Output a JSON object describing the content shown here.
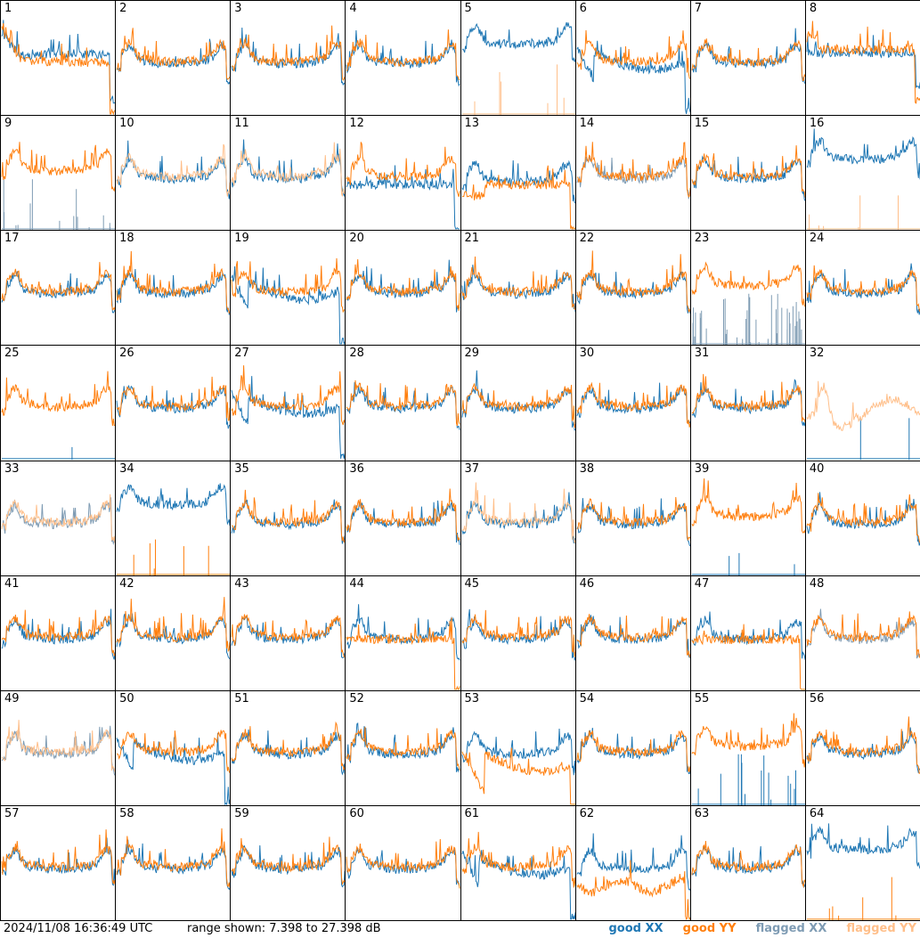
{
  "colors": {
    "good_xx": "#1f77b4",
    "good_yy": "#ff7f0e",
    "flagged_xx": "#7f9cb4",
    "flagged_yy": "#ffbf8a"
  },
  "footer": {
    "timestamp": "2024/11/08 16:36:49 UTC",
    "range_text": "range shown: 7.398 to 27.398 dB"
  },
  "legend": {
    "good_xx": "good XX",
    "good_yy": "good YY",
    "flagged_xx": "flagged XX",
    "flagged_yy": "flagged YY"
  },
  "chart_data": {
    "type": "line",
    "grid": "8x8",
    "ylim_db": [
      7.398,
      27.398
    ],
    "panels": [
      {
        "label": "1",
        "xx": "good",
        "yy": "good",
        "shape": "decay_flat"
      },
      {
        "label": "2",
        "xx": "good",
        "yy": "good",
        "shape": "normal"
      },
      {
        "label": "3",
        "xx": "good",
        "yy": "good",
        "shape": "normal"
      },
      {
        "label": "4",
        "xx": "good",
        "yy": "good",
        "shape": "normal"
      },
      {
        "label": "5",
        "xx": "good",
        "yy": "flagged",
        "shape": "xx_high_yy_spikes"
      },
      {
        "label": "6",
        "xx": "good",
        "yy": "good",
        "shape": "xx_low_curve"
      },
      {
        "label": "7",
        "xx": "good",
        "yy": "good",
        "shape": "normal"
      },
      {
        "label": "8",
        "xx": "good",
        "yy": "good",
        "shape": "flat_drop"
      },
      {
        "label": "9",
        "xx": "flagged",
        "yy": "good",
        "shape": "yy_high_xx_spikes"
      },
      {
        "label": "10",
        "xx": "good",
        "yy": "flagged",
        "shape": "normal"
      },
      {
        "label": "11",
        "xx": "good",
        "yy": "flagged",
        "shape": "normal"
      },
      {
        "label": "12",
        "xx": "good",
        "yy": "good",
        "shape": "xx_flat_lower"
      },
      {
        "label": "13",
        "xx": "good",
        "yy": "good",
        "shape": "noisy_decay"
      },
      {
        "label": "14",
        "xx": "flagged",
        "yy": "good",
        "shape": "normal"
      },
      {
        "label": "15",
        "xx": "good",
        "yy": "good",
        "shape": "normal"
      },
      {
        "label": "16",
        "xx": "good",
        "yy": "flagged",
        "shape": "xx_high_yy_spikes"
      },
      {
        "label": "17",
        "xx": "good",
        "yy": "good",
        "shape": "normal"
      },
      {
        "label": "18",
        "xx": "good",
        "yy": "good",
        "shape": "normal"
      },
      {
        "label": "19",
        "xx": "good",
        "yy": "good",
        "shape": "xx_low_curve"
      },
      {
        "label": "20",
        "xx": "good",
        "yy": "good",
        "shape": "normal"
      },
      {
        "label": "21",
        "xx": "good",
        "yy": "good",
        "shape": "normal"
      },
      {
        "label": "22",
        "xx": "good",
        "yy": "good",
        "shape": "normal"
      },
      {
        "label": "23",
        "xx": "flagged",
        "yy": "good",
        "shape": "yy_high_xx_noise"
      },
      {
        "label": "24",
        "xx": "good",
        "yy": "good",
        "shape": "normal"
      },
      {
        "label": "25",
        "xx": "good",
        "yy": "good",
        "shape": "yy_only"
      },
      {
        "label": "26",
        "xx": "good",
        "yy": "good",
        "shape": "normal"
      },
      {
        "label": "27",
        "xx": "good",
        "yy": "good",
        "shape": "xx_low_curve"
      },
      {
        "label": "28",
        "xx": "good",
        "yy": "good",
        "shape": "normal"
      },
      {
        "label": "29",
        "xx": "good",
        "yy": "good",
        "shape": "normal"
      },
      {
        "label": "30",
        "xx": "good",
        "yy": "good",
        "shape": "normal"
      },
      {
        "label": "31",
        "xx": "good",
        "yy": "good",
        "shape": "normal"
      },
      {
        "label": "32",
        "xx": "good",
        "yy": "flagged",
        "shape": "yy_flag_high"
      },
      {
        "label": "33",
        "xx": "flagged",
        "yy": "flagged",
        "shape": "normal"
      },
      {
        "label": "34",
        "xx": "good",
        "yy": "good",
        "shape": "xx_high_yy_spikes"
      },
      {
        "label": "35",
        "xx": "good",
        "yy": "good",
        "shape": "normal"
      },
      {
        "label": "36",
        "xx": "good",
        "yy": "good",
        "shape": "normal"
      },
      {
        "label": "37",
        "xx": "good",
        "yy": "flagged",
        "shape": "normal"
      },
      {
        "label": "38",
        "xx": "good",
        "yy": "good",
        "shape": "normal"
      },
      {
        "label": "39",
        "xx": "good",
        "yy": "good",
        "shape": "yy_high_xx_spike"
      },
      {
        "label": "40",
        "xx": "good",
        "yy": "good",
        "shape": "normal"
      },
      {
        "label": "41",
        "xx": "good",
        "yy": "good",
        "shape": "normal"
      },
      {
        "label": "42",
        "xx": "good",
        "yy": "good",
        "shape": "normal"
      },
      {
        "label": "43",
        "xx": "good",
        "yy": "good",
        "shape": "normal"
      },
      {
        "label": "44",
        "xx": "good",
        "yy": "good",
        "shape": "yy_flat_lower"
      },
      {
        "label": "45",
        "xx": "good",
        "yy": "good",
        "shape": "normal"
      },
      {
        "label": "46",
        "xx": "good",
        "yy": "good",
        "shape": "normal"
      },
      {
        "label": "47",
        "xx": "good",
        "yy": "good",
        "shape": "yy_flat_lower"
      },
      {
        "label": "48",
        "xx": "flagged",
        "yy": "good",
        "shape": "normal"
      },
      {
        "label": "49",
        "xx": "flagged",
        "yy": "flagged",
        "shape": "normal"
      },
      {
        "label": "50",
        "xx": "good",
        "yy": "good",
        "shape": "xx_low_curve"
      },
      {
        "label": "51",
        "xx": "good",
        "yy": "good",
        "shape": "normal"
      },
      {
        "label": "52",
        "xx": "good",
        "yy": "good",
        "shape": "normal"
      },
      {
        "label": "53",
        "xx": "good",
        "yy": "good",
        "shape": "yy_low_curve"
      },
      {
        "label": "54",
        "xx": "good",
        "yy": "good",
        "shape": "normal"
      },
      {
        "label": "55",
        "xx": "good",
        "yy": "good",
        "shape": "yy_high_xx_spikes"
      },
      {
        "label": "56",
        "xx": "good",
        "yy": "good",
        "shape": "normal"
      },
      {
        "label": "57",
        "xx": "good",
        "yy": "good",
        "shape": "normal"
      },
      {
        "label": "58",
        "xx": "good",
        "yy": "good",
        "shape": "normal"
      },
      {
        "label": "59",
        "xx": "good",
        "yy": "good",
        "shape": "normal"
      },
      {
        "label": "60",
        "xx": "good",
        "yy": "good",
        "shape": "normal"
      },
      {
        "label": "61",
        "xx": "good",
        "yy": "good",
        "shape": "xx_low_curve"
      },
      {
        "label": "62",
        "xx": "good",
        "yy": "good",
        "shape": "yy_low_noisy"
      },
      {
        "label": "63",
        "xx": "good",
        "yy": "good",
        "shape": "normal"
      },
      {
        "label": "64",
        "xx": "good",
        "yy": "good",
        "shape": "xx_high_yy_spikes"
      }
    ]
  }
}
